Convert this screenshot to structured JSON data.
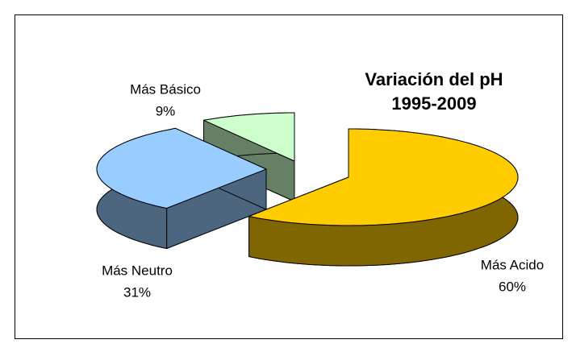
{
  "chart_data": {
    "type": "pie",
    "title": "Variación del pH",
    "subtitle": "1995-2009",
    "categories": [
      "Más Acido",
      "Más Neutro",
      "Más Básico"
    ],
    "values": [
      60,
      31,
      9
    ],
    "value_labels": [
      "60%",
      "31%",
      "9%"
    ],
    "colors": [
      "#ffcc00",
      "#99ccff",
      "#ccffcc"
    ]
  }
}
